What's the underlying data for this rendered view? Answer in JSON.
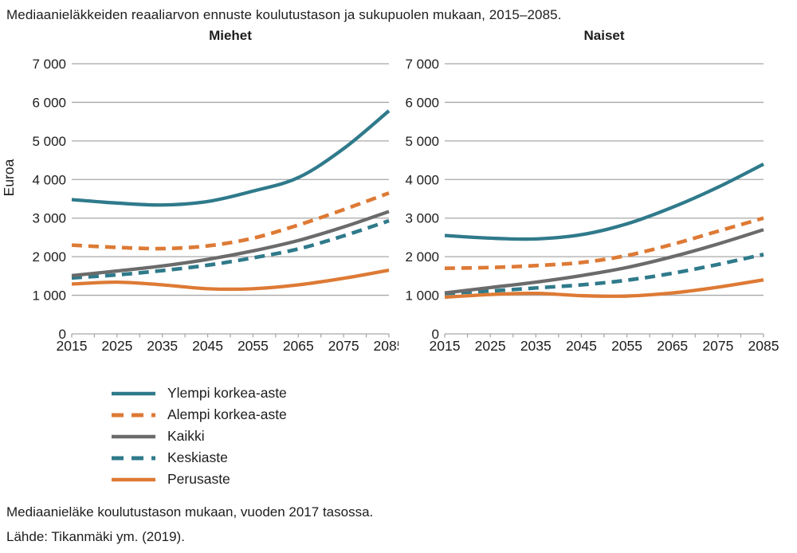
{
  "title": "Mediaanieläkkeiden reaaliarvon ennuste koulutustason ja sukupuolen mukaan, 2015–2085.",
  "footer": {
    "note": "Mediaanieläke koulutustason mukaan, vuoden 2017 tasossa.",
    "source": "Lähde: Tikanmäki ym. (2019)."
  },
  "colors": {
    "teal": "#2f7a8b",
    "orange": "#dd7a35",
    "gray": "#6b6b6b",
    "grid": "#a8a8a8",
    "text": "#1d1d1d"
  },
  "chart_data": [
    {
      "type": "line",
      "title": "Miehet",
      "ylabel": "Euroa",
      "xlabel": "",
      "grid": true,
      "xlim": [
        2015,
        2085
      ],
      "ylim": [
        0,
        7000
      ],
      "ytick_step": 1000,
      "yticklabels": [
        "0",
        "1 000",
        "2 000",
        "3 000",
        "4 000",
        "5 000",
        "6 000",
        "7 000"
      ],
      "xticks": [
        2015,
        2025,
        2035,
        2045,
        2055,
        2065,
        2075,
        2085
      ],
      "xminor_step": 5,
      "x": [
        2015,
        2025,
        2035,
        2045,
        2055,
        2065,
        2075,
        2085
      ],
      "draw_order": [
        3,
        1,
        2,
        4,
        0
      ],
      "series": [
        {
          "name": "Ylempi korkea-aste",
          "color": "teal",
          "dash": false,
          "values": [
            3480,
            3390,
            3340,
            3430,
            3700,
            4050,
            4800,
            5780
          ]
        },
        {
          "name": "Alempi korkea-aste",
          "color": "orange",
          "dash": true,
          "values": [
            2300,
            2240,
            2210,
            2280,
            2480,
            2820,
            3220,
            3650
          ]
        },
        {
          "name": "Kaikki",
          "color": "gray",
          "dash": false,
          "values": [
            1510,
            1630,
            1760,
            1930,
            2150,
            2420,
            2770,
            3170
          ]
        },
        {
          "name": "Keskiaste",
          "color": "teal",
          "dash": true,
          "values": [
            1450,
            1530,
            1640,
            1780,
            1970,
            2200,
            2540,
            2930
          ]
        },
        {
          "name": "Perusaste",
          "color": "orange",
          "dash": false,
          "values": [
            1290,
            1340,
            1270,
            1170,
            1170,
            1270,
            1440,
            1650
          ]
        }
      ]
    },
    {
      "type": "line",
      "title": "Naiset",
      "ylabel": "",
      "xlabel": "",
      "grid": true,
      "xlim": [
        2015,
        2085
      ],
      "ylim": [
        0,
        7000
      ],
      "ytick_step": 1000,
      "yticklabels": [
        "0",
        "1 000",
        "2 000",
        "3 000",
        "4 000",
        "5 000",
        "6 000",
        "7 000"
      ],
      "xticks": [
        2015,
        2025,
        2035,
        2045,
        2055,
        2065,
        2075,
        2085
      ],
      "xminor_step": 5,
      "x": [
        2015,
        2025,
        2035,
        2045,
        2055,
        2065,
        2075,
        2085
      ],
      "draw_order": [
        3,
        1,
        2,
        4,
        0
      ],
      "series": [
        {
          "name": "Ylempi korkea-aste",
          "color": "teal",
          "dash": false,
          "values": [
            2550,
            2480,
            2460,
            2570,
            2850,
            3280,
            3800,
            4400
          ]
        },
        {
          "name": "Alempi korkea-aste",
          "color": "orange",
          "dash": true,
          "values": [
            1700,
            1720,
            1770,
            1850,
            2030,
            2320,
            2660,
            3000
          ]
        },
        {
          "name": "Kaikki",
          "color": "gray",
          "dash": false,
          "values": [
            1060,
            1200,
            1340,
            1510,
            1720,
            2000,
            2330,
            2700
          ]
        },
        {
          "name": "Keskiaste",
          "color": "teal",
          "dash": true,
          "values": [
            1050,
            1110,
            1190,
            1270,
            1390,
            1570,
            1800,
            2060
          ]
        },
        {
          "name": "Perusaste",
          "color": "orange",
          "dash": false,
          "values": [
            950,
            1020,
            1050,
            990,
            980,
            1060,
            1210,
            1400
          ]
        }
      ]
    }
  ],
  "legend_note": "legend entries mirror chart series, below-left position"
}
